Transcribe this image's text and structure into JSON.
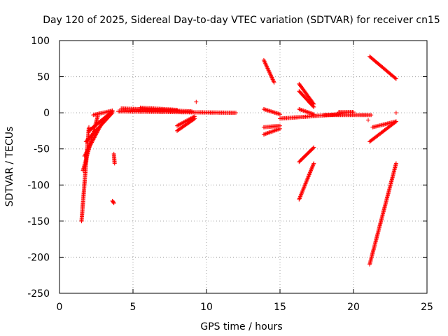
{
  "chart_data": {
    "type": "scatter",
    "title": "Day 120 of 2025, Sidereal Day-to-day VTEC variation (SDTVAR) for receiver cn15",
    "xlabel": "GPS time / hours",
    "ylabel": "SDTVAR / TECUs",
    "xlim": [
      0,
      25
    ],
    "ylim": [
      -250,
      100
    ],
    "xticks": [
      0,
      5,
      10,
      15,
      20,
      25
    ],
    "yticks": [
      -250,
      -200,
      -150,
      -100,
      -50,
      0,
      50,
      100
    ],
    "grid": true,
    "marker": "+",
    "color": "#ff0000",
    "series": [
      {
        "segments": [
          {
            "x0": 1.5,
            "x1": 2.0,
            "y0": -150,
            "y1": -20
          },
          {
            "x0": 1.6,
            "x1": 2.6,
            "y0": -80,
            "y1": -5
          },
          {
            "x0": 1.8,
            "x1": 3.6,
            "y0": -40,
            "y1": 0
          },
          {
            "x0": 2.0,
            "x1": 3.6,
            "y0": -25,
            "y1": 2
          },
          {
            "x0": 1.7,
            "x1": 3.0,
            "y0": -60,
            "y1": -10
          },
          {
            "x0": 2.3,
            "x1": 3.6,
            "y0": -3,
            "y1": 3
          },
          {
            "x0": 3.7,
            "x1": 3.75,
            "y0": -57,
            "y1": -70
          },
          {
            "x0": 3.6,
            "x1": 3.7,
            "y0": -122,
            "y1": -125
          },
          {
            "x0": 4.0,
            "x1": 12.0,
            "y0": 2,
            "y1": 0
          },
          {
            "x0": 4.2,
            "x1": 9.0,
            "y0": 6,
            "y1": 2
          },
          {
            "x0": 5.5,
            "x1": 8.0,
            "y0": 7,
            "y1": 4
          },
          {
            "x0": 8.0,
            "x1": 9.2,
            "y0": -25,
            "y1": -8
          },
          {
            "x0": 8.0,
            "x1": 9.2,
            "y0": -18,
            "y1": -5
          },
          {
            "x0": 13.9,
            "x1": 14.6,
            "y0": 73,
            "y1": 42
          },
          {
            "x0": 13.9,
            "x1": 15.0,
            "y0": 5,
            "y1": -2
          },
          {
            "x0": 13.9,
            "x1": 15.0,
            "y0": -20,
            "y1": -18
          },
          {
            "x0": 13.9,
            "x1": 15.0,
            "y0": -30,
            "y1": -22
          },
          {
            "x0": 15.0,
            "x1": 19.0,
            "y0": -8,
            "y1": -2
          },
          {
            "x0": 16.3,
            "x1": 17.3,
            "y0": 40,
            "y1": 12
          },
          {
            "x0": 16.3,
            "x1": 17.3,
            "y0": 30,
            "y1": 8
          },
          {
            "x0": 16.3,
            "x1": 17.3,
            "y0": 5,
            "y1": -2
          },
          {
            "x0": 16.3,
            "x1": 17.3,
            "y0": -68,
            "y1": -48
          },
          {
            "x0": 16.3,
            "x1": 17.3,
            "y0": -120,
            "y1": -70
          },
          {
            "x0": 18.0,
            "x1": 21.2,
            "y0": -3,
            "y1": -3
          },
          {
            "x0": 19.0,
            "x1": 20.0,
            "y0": 1,
            "y1": 1
          },
          {
            "x0": 21.1,
            "x1": 22.9,
            "y0": 78,
            "y1": 47
          },
          {
            "x0": 21.1,
            "x1": 22.9,
            "y0": -40,
            "y1": -12
          },
          {
            "x0": 21.3,
            "x1": 22.9,
            "y0": -20,
            "y1": -12
          },
          {
            "x0": 21.1,
            "x1": 22.9,
            "y0": -210,
            "y1": -70
          }
        ],
        "points": [
          {
            "x": 9.3,
            "y": 15
          },
          {
            "x": 22.9,
            "y": 0
          },
          {
            "x": 21.0,
            "y": -10
          },
          {
            "x": 1.5,
            "y": -150
          }
        ]
      }
    ]
  }
}
